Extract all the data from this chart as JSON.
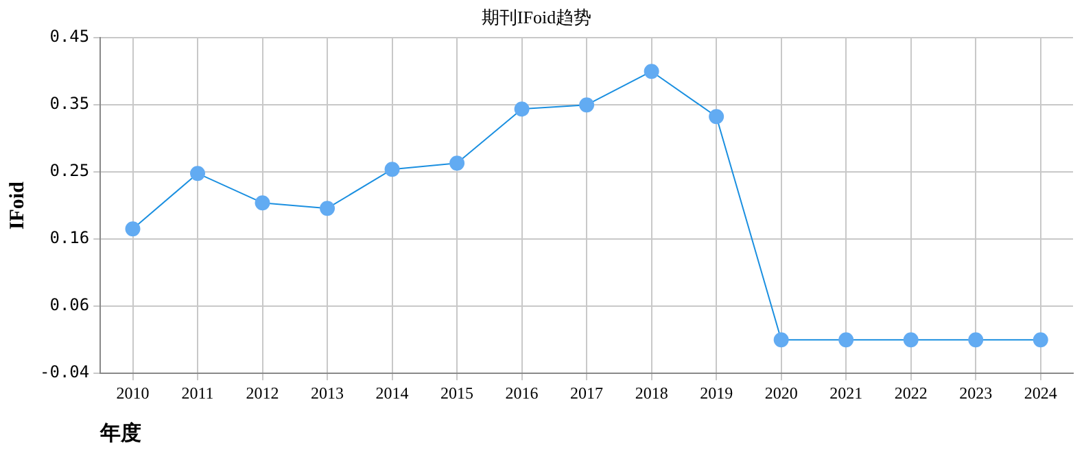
{
  "chart_data": {
    "type": "line",
    "title": "期刊IFoid趋势",
    "xlabel": "年度",
    "ylabel": "IFoid",
    "categories": [
      "2010",
      "2011",
      "2012",
      "2013",
      "2014",
      "2015",
      "2016",
      "2017",
      "2018",
      "2019",
      "2020",
      "2021",
      "2022",
      "2023",
      "2024"
    ],
    "series": [
      {
        "color": "#1a8fe0",
        "values": [
          0.171,
          0.252,
          0.209,
          0.201,
          0.258,
          0.267,
          0.346,
          0.352,
          0.401,
          0.335,
          0.009,
          0.009,
          0.009,
          0.009,
          0.009
        ]
      }
    ],
    "ylim": [
      -0.04,
      0.45
    ],
    "yticks": [
      {
        "value": -0.04,
        "label": "-0.04"
      },
      {
        "value": 0.058,
        "label": "0.06"
      },
      {
        "value": 0.156,
        "label": "0.16"
      },
      {
        "value": 0.254,
        "label": "0.25"
      },
      {
        "value": 0.352,
        "label": "0.35"
      },
      {
        "value": 0.45,
        "label": "0.45"
      }
    ],
    "grid": true,
    "legend": false,
    "marker": "circle",
    "line_style": "solid"
  }
}
